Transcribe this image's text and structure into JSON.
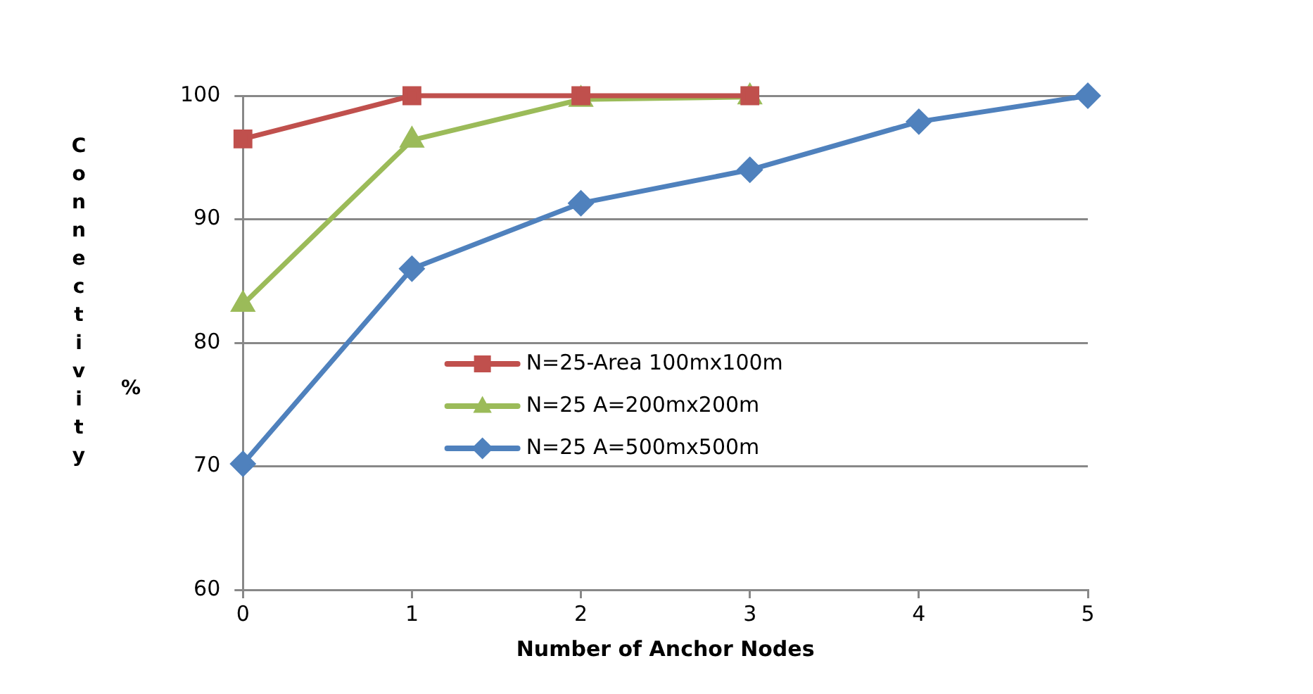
{
  "chart_data": {
    "type": "line",
    "xlabel": "Number of Anchor Nodes",
    "ylabel": "Connectivity %",
    "x": [
      0,
      1,
      2,
      3,
      4,
      5
    ],
    "xlim": [
      0,
      5
    ],
    "xticks": [
      0,
      1,
      2,
      3,
      4,
      5
    ],
    "ylim": [
      60,
      100
    ],
    "yticks": [
      60,
      70,
      80,
      90,
      100
    ],
    "grid": "y",
    "legend": "center",
    "series": [
      {
        "name": "N=25-Area 100mx100m",
        "color": "#c0504d",
        "marker": "square",
        "x": [
          0,
          1,
          2,
          3
        ],
        "values": [
          96.5,
          100,
          100,
          100
        ]
      },
      {
        "name": "N=25 A=200mx200m",
        "color": "#9bbb59",
        "marker": "triangle",
        "x": [
          0,
          1,
          2,
          3
        ],
        "values": [
          83.1,
          96.4,
          99.7,
          99.9
        ]
      },
      {
        "name": "N=25 A=500mx500m",
        "color": "#4f81bd",
        "marker": "diamond",
        "values": [
          70.2,
          86.0,
          91.3,
          94.0,
          97.9,
          100
        ]
      }
    ]
  }
}
